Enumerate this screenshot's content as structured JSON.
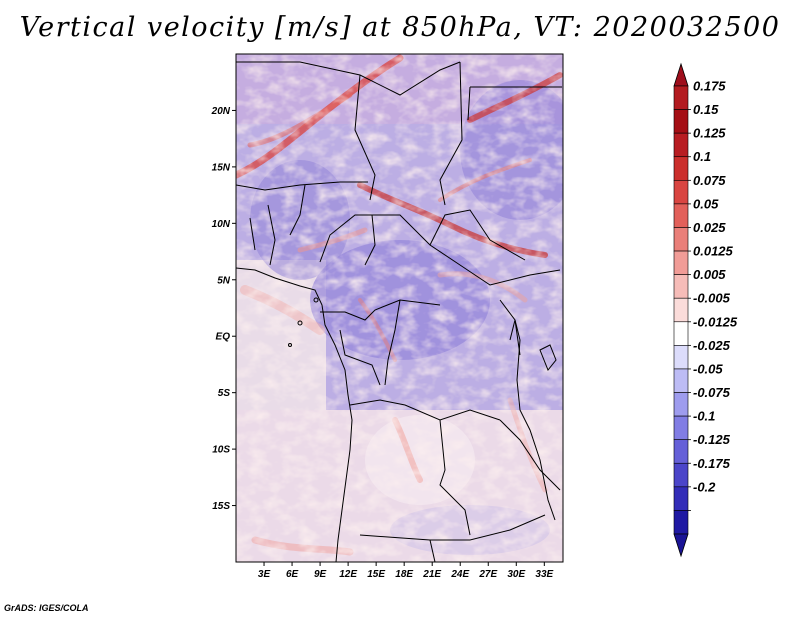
{
  "title": "Vertical velocity [m/s] at 850hPa, VT: 2020032500",
  "credit": "GrADS: IGES/COLA",
  "map": {
    "lon_range": [
      0,
      35
    ],
    "lat_range": [
      -20,
      25
    ],
    "lat_ticks": [
      {
        "lat": 20,
        "label": "20N"
      },
      {
        "lat": 15,
        "label": "15N"
      },
      {
        "lat": 10,
        "label": "10N"
      },
      {
        "lat": 5,
        "label": "5N"
      },
      {
        "lat": 0,
        "label": "EQ"
      },
      {
        "lat": -5,
        "label": "5S"
      },
      {
        "lat": -10,
        "label": "10S"
      },
      {
        "lat": -15,
        "label": "15S"
      }
    ],
    "lon_ticks": [
      {
        "lon": 3,
        "label": "3E"
      },
      {
        "lon": 6,
        "label": "6E"
      },
      {
        "lon": 9,
        "label": "9E"
      },
      {
        "lon": 12,
        "label": "12E"
      },
      {
        "lon": 15,
        "label": "15E"
      },
      {
        "lon": 18,
        "label": "18E"
      },
      {
        "lon": 21,
        "label": "21E"
      },
      {
        "lon": 24,
        "label": "24E"
      },
      {
        "lon": 27,
        "label": "27E"
      },
      {
        "lon": 30,
        "label": "30E"
      },
      {
        "lon": 33,
        "label": "33E"
      }
    ]
  },
  "colorbar": {
    "levels": [
      {
        "label": "0.175",
        "color": "#a50f15"
      },
      {
        "label": "0.15",
        "color": "#b81d22"
      },
      {
        "label": "0.125",
        "color": "#cb2f2c"
      },
      {
        "label": "0.1",
        "color": "#d94541"
      },
      {
        "label": "0.075",
        "color": "#e2605a"
      },
      {
        "label": "0.05",
        "color": "#ea7f79"
      },
      {
        "label": "0.025",
        "color": "#f19c97"
      },
      {
        "label": "0.0125",
        "color": "#f6bcb8"
      },
      {
        "label": "0.005",
        "color": "#fbdcda"
      },
      {
        "label": "-0.005",
        "color": "#ffffff"
      },
      {
        "label": "-0.0125",
        "color": "#dcdcfb"
      },
      {
        "label": "-0.025",
        "color": "#bdbcf5"
      },
      {
        "label": "-0.05",
        "color": "#9e9cee"
      },
      {
        "label": "-0.075",
        "color": "#817de4"
      },
      {
        "label": "-0.1",
        "color": "#6560d8"
      },
      {
        "label": "-0.125",
        "color": "#4b45c9"
      },
      {
        "label": "-0.175",
        "color": "#332db8"
      },
      {
        "label": "-0.2",
        "color": "#1f19a3"
      }
    ],
    "top_color": "#9e0e1c",
    "bottom_color": "#1a1496"
  }
}
